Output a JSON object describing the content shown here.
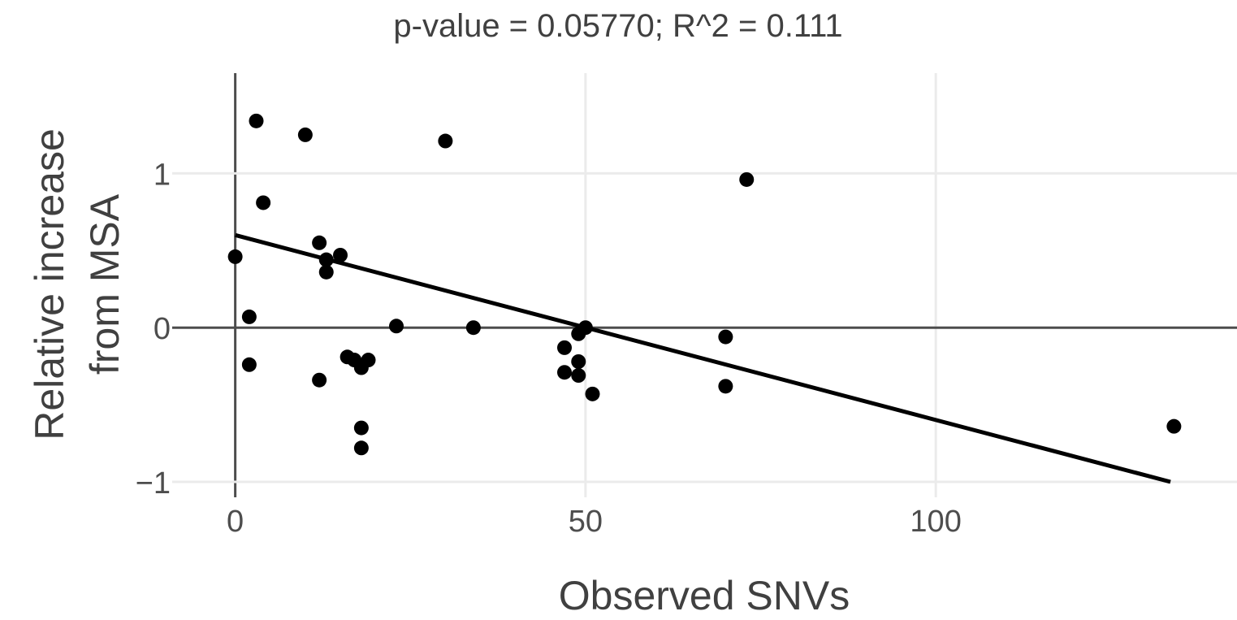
{
  "chart_data": {
    "type": "scatter",
    "title": "p-value = 0.05770; R^2 = 0.111",
    "xlabel": "Observed SNVs",
    "ylabel": [
      "Relative increase",
      "from MSA"
    ],
    "xlim": [
      -9,
      143
    ],
    "ylim": [
      -1.1,
      1.65
    ],
    "x_ticks": [
      0,
      50,
      100
    ],
    "y_ticks": [
      -1,
      0,
      1
    ],
    "x_tick_labels": [
      "0",
      "50",
      "100"
    ],
    "y_tick_labels": [
      "−1",
      "0",
      "1"
    ],
    "grid": true,
    "points": [
      {
        "x": 0,
        "y": 0.46
      },
      {
        "x": 2,
        "y": 0.07
      },
      {
        "x": 2,
        "y": -0.24
      },
      {
        "x": 3,
        "y": 1.34
      },
      {
        "x": 4,
        "y": 0.81
      },
      {
        "x": 10,
        "y": 1.25
      },
      {
        "x": 12,
        "y": 0.55
      },
      {
        "x": 12,
        "y": -0.34
      },
      {
        "x": 13,
        "y": 0.44
      },
      {
        "x": 13,
        "y": 0.36
      },
      {
        "x": 15,
        "y": 0.47
      },
      {
        "x": 16,
        "y": -0.19
      },
      {
        "x": 17,
        "y": -0.21
      },
      {
        "x": 18,
        "y": -0.26
      },
      {
        "x": 18,
        "y": -0.65
      },
      {
        "x": 18,
        "y": -0.78
      },
      {
        "x": 19,
        "y": -0.21
      },
      {
        "x": 23,
        "y": 0.01
      },
      {
        "x": 30,
        "y": 1.21
      },
      {
        "x": 34,
        "y": 0.0
      },
      {
        "x": 47,
        "y": -0.13
      },
      {
        "x": 47,
        "y": -0.29
      },
      {
        "x": 49,
        "y": -0.04
      },
      {
        "x": 49,
        "y": -0.22
      },
      {
        "x": 49,
        "y": -0.31
      },
      {
        "x": 50,
        "y": 0.0
      },
      {
        "x": 51,
        "y": -0.43
      },
      {
        "x": 70,
        "y": -0.06
      },
      {
        "x": 70,
        "y": -0.38
      },
      {
        "x": 73,
        "y": 0.96
      },
      {
        "x": 134,
        "y": -0.64
      }
    ],
    "fit_line": {
      "x": [
        0,
        133.5
      ],
      "y": [
        0.6,
        -1.0
      ]
    },
    "point_color": "#000000",
    "line_color": "#000000"
  }
}
